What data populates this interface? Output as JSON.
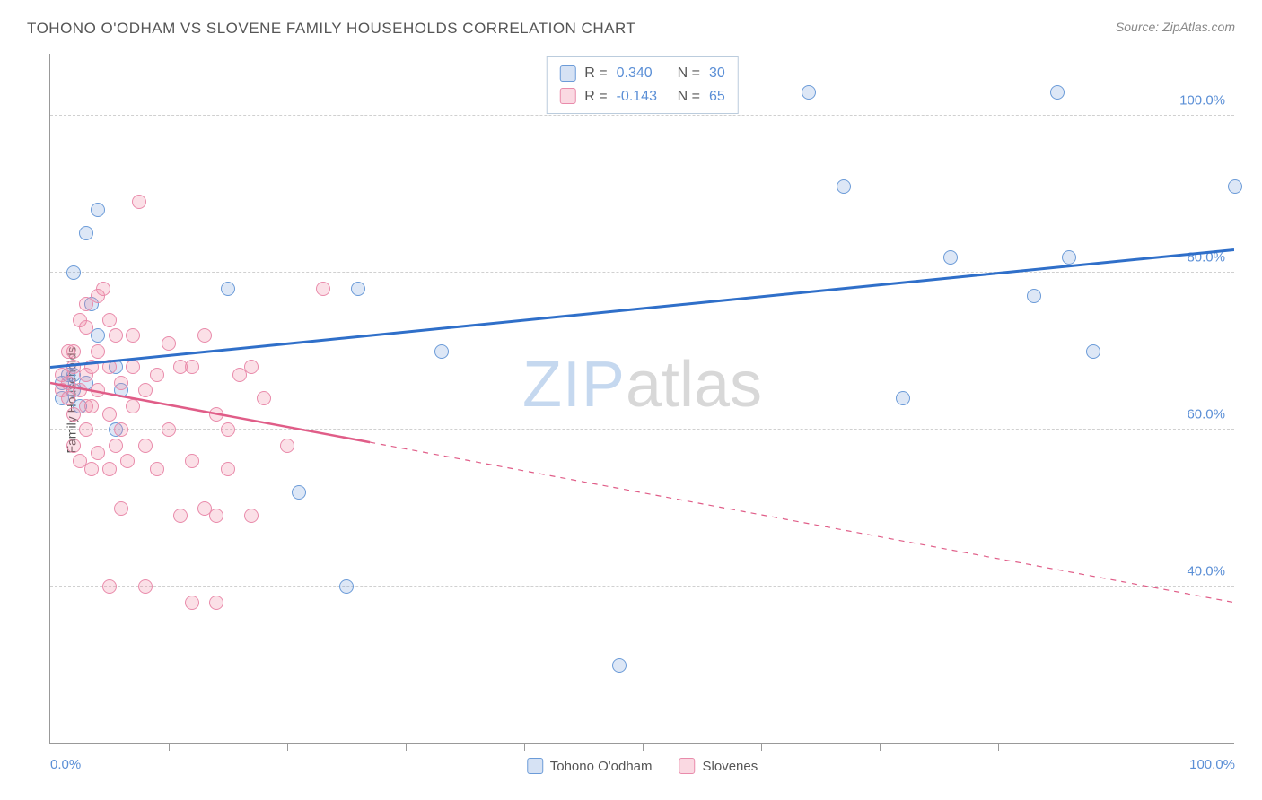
{
  "title": "TOHONO O'ODHAM VS SLOVENE FAMILY HOUSEHOLDS CORRELATION CHART",
  "source": "Source: ZipAtlas.com",
  "ylabel": "Family Households",
  "watermark": {
    "left": "ZIP",
    "right": "atlas"
  },
  "chart": {
    "type": "scatter",
    "background_color": "#ffffff",
    "grid_color": "#d0d0d0",
    "axis_color": "#999999",
    "xlim": [
      0,
      100
    ],
    "ylim": [
      20,
      108
    ],
    "yticks": [
      {
        "v": 40,
        "label": "40.0%"
      },
      {
        "v": 60,
        "label": "60.0%"
      },
      {
        "v": 80,
        "label": "80.0%"
      },
      {
        "v": 100,
        "label": "100.0%"
      }
    ],
    "xticks_minor": [
      10,
      20,
      30,
      40,
      50,
      60,
      70,
      80,
      90
    ],
    "xticks_labeled": [
      {
        "v": 0,
        "label": "0.0%"
      },
      {
        "v": 100,
        "label": "100.0%"
      }
    ],
    "legend_top": [
      {
        "swatch": "blue",
        "r_label": "R =",
        "r": "0.340",
        "n_label": "N =",
        "n": "30"
      },
      {
        "swatch": "pink",
        "r_label": "R =",
        "r": "-0.143",
        "n_label": "N =",
        "n": "65"
      }
    ],
    "legend_bottom": [
      {
        "swatch": "blue",
        "label": "Tohono O'odham"
      },
      {
        "swatch": "pink",
        "label": "Slovenes"
      }
    ],
    "series": [
      {
        "name": "Tohono O'odham",
        "color_fill": "rgba(120,160,220,0.25)",
        "color_stroke": "#6b9bd8",
        "trend": {
          "color": "#2f6fc9",
          "width": 3,
          "x1": 0,
          "y1": 68,
          "x2": 100,
          "y2": 83,
          "solid_until": 100
        },
        "points": [
          [
            1,
            66
          ],
          [
            2,
            65
          ],
          [
            2,
            80
          ],
          [
            3,
            85
          ],
          [
            3.5,
            76
          ],
          [
            4,
            88
          ],
          [
            4,
            72
          ],
          [
            5.5,
            68
          ],
          [
            5.5,
            60
          ],
          [
            6,
            65
          ],
          [
            15,
            78
          ],
          [
            21,
            52
          ],
          [
            25,
            40
          ],
          [
            26,
            78
          ],
          [
            33,
            70
          ],
          [
            48,
            30
          ],
          [
            64,
            103
          ],
          [
            67,
            91
          ],
          [
            72,
            64
          ],
          [
            76,
            82
          ],
          [
            83,
            77
          ],
          [
            85,
            103
          ],
          [
            86,
            82
          ],
          [
            88,
            70
          ],
          [
            100,
            91
          ],
          [
            2.5,
            63
          ],
          [
            3,
            66
          ],
          [
            1.5,
            67
          ],
          [
            1,
            64
          ],
          [
            2,
            67
          ]
        ]
      },
      {
        "name": "Slovenes",
        "color_fill": "rgba(240,130,160,0.25)",
        "color_stroke": "#e98bab",
        "trend": {
          "color": "#e05d88",
          "width": 2.5,
          "x1": 0,
          "y1": 66,
          "x2": 100,
          "y2": 38,
          "solid_until": 27
        },
        "points": [
          [
            1,
            65
          ],
          [
            1,
            67
          ],
          [
            1.5,
            64
          ],
          [
            1.5,
            66
          ],
          [
            2,
            58
          ],
          [
            2,
            62
          ],
          [
            2,
            68
          ],
          [
            2,
            70
          ],
          [
            2.5,
            56
          ],
          [
            2.5,
            65
          ],
          [
            2.5,
            74
          ],
          [
            3,
            60
          ],
          [
            3,
            67
          ],
          [
            3,
            73
          ],
          [
            3,
            76
          ],
          [
            3.5,
            55
          ],
          [
            3.5,
            63
          ],
          [
            3.5,
            68
          ],
          [
            4,
            57
          ],
          [
            4,
            65
          ],
          [
            4,
            70
          ],
          [
            4,
            77
          ],
          [
            4.5,
            78
          ],
          [
            5,
            55
          ],
          [
            5,
            62
          ],
          [
            5,
            68
          ],
          [
            5,
            74
          ],
          [
            5.5,
            58
          ],
          [
            5.5,
            72
          ],
          [
            6,
            50
          ],
          [
            6,
            60
          ],
          [
            6,
            66
          ],
          [
            6.5,
            56
          ],
          [
            7,
            63
          ],
          [
            7,
            68
          ],
          [
            7,
            72
          ],
          [
            7.5,
            89
          ],
          [
            8,
            58
          ],
          [
            8,
            65
          ],
          [
            9,
            55
          ],
          [
            9,
            67
          ],
          [
            10,
            60
          ],
          [
            10,
            71
          ],
          [
            11,
            49
          ],
          [
            11,
            68
          ],
          [
            12,
            56
          ],
          [
            12,
            68
          ],
          [
            13,
            72
          ],
          [
            13,
            50
          ],
          [
            14,
            49
          ],
          [
            14,
            62
          ],
          [
            15,
            55
          ],
          [
            15,
            60
          ],
          [
            16,
            67
          ],
          [
            17,
            49
          ],
          [
            17,
            68
          ],
          [
            18,
            64
          ],
          [
            20,
            58
          ],
          [
            8,
            40
          ],
          [
            12,
            38
          ],
          [
            14,
            38
          ],
          [
            23,
            78
          ],
          [
            5,
            40
          ],
          [
            3,
            63
          ],
          [
            1.5,
            70
          ]
        ]
      }
    ]
  }
}
